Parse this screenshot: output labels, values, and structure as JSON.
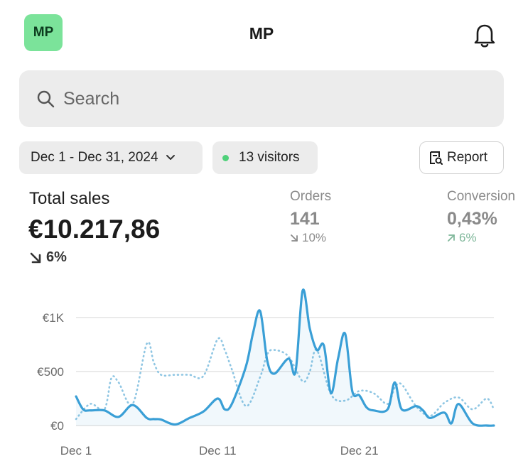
{
  "header": {
    "avatar_initials": "MP",
    "title": "MP",
    "notification_icon": "bell-icon"
  },
  "search": {
    "placeholder": "Search",
    "value": "",
    "icon": "search-icon"
  },
  "filters": {
    "date_range": "Dec 1 - Dec 31, 2024",
    "visitors": "13 visitors",
    "visitors_dot_color": "#4fd17a",
    "report_label": "Report"
  },
  "metrics": {
    "total_sales": {
      "label": "Total sales",
      "value": "€10.217,86",
      "change": "6%",
      "direction": "down"
    },
    "orders": {
      "label": "Orders",
      "value": "141",
      "change": "10%",
      "direction": "down"
    },
    "conversion": {
      "label": "Conversion",
      "value": "0,43%",
      "change": "6%",
      "direction": "up",
      "change_color": "#7fb79a"
    }
  },
  "chart_data": {
    "type": "line",
    "y_tick_labels": [
      "€0",
      "€500",
      "€1K"
    ],
    "x_tick_labels": [
      "Dec 1",
      "Dec 11",
      "Dec 21"
    ],
    "ylim": [
      0,
      1300
    ],
    "grid": true,
    "legend": "none",
    "series": [
      {
        "style": "solid",
        "color": "#3a9fd6",
        "x": [
          1,
          1.5,
          2,
          3,
          4,
          5,
          6,
          6.5,
          7,
          8,
          9,
          10,
          11,
          11.5,
          12,
          13,
          13.5,
          14,
          14.5,
          15,
          16,
          16.5,
          17,
          17.5,
          18,
          18.5,
          19,
          19.5,
          20,
          20.5,
          21,
          21.5,
          22,
          23,
          23.5,
          24,
          25,
          25.5,
          26,
          27,
          27.5,
          28,
          29,
          30,
          30.5
        ],
        "values": [
          270,
          150,
          140,
          140,
          80,
          190,
          70,
          60,
          55,
          10,
          70,
          130,
          250,
          150,
          200,
          550,
          860,
          1060,
          600,
          480,
          620,
          500,
          1250,
          900,
          700,
          740,
          300,
          620,
          850,
          320,
          280,
          170,
          140,
          150,
          400,
          150,
          180,
          140,
          70,
          120,
          20,
          200,
          20,
          0,
          0
        ]
      },
      {
        "style": "dotted",
        "color": "#8fc6e3",
        "x": [
          1,
          2,
          3,
          3.5,
          4,
          5,
          6,
          6.5,
          7,
          8,
          9,
          10,
          11,
          11.5,
          12,
          13,
          14,
          14.5,
          15,
          16,
          17,
          17.5,
          18,
          19,
          20,
          21,
          22,
          23,
          23.5,
          24,
          25,
          26,
          27,
          28,
          29,
          30,
          30.5
        ],
        "values": [
          60,
          200,
          150,
          440,
          400,
          200,
          760,
          580,
          470,
          470,
          470,
          460,
          800,
          700,
          520,
          180,
          450,
          660,
          700,
          640,
          410,
          500,
          700,
          290,
          230,
          320,
          300,
          200,
          350,
          380,
          180,
          90,
          210,
          260,
          150,
          250,
          150
        ]
      }
    ]
  }
}
